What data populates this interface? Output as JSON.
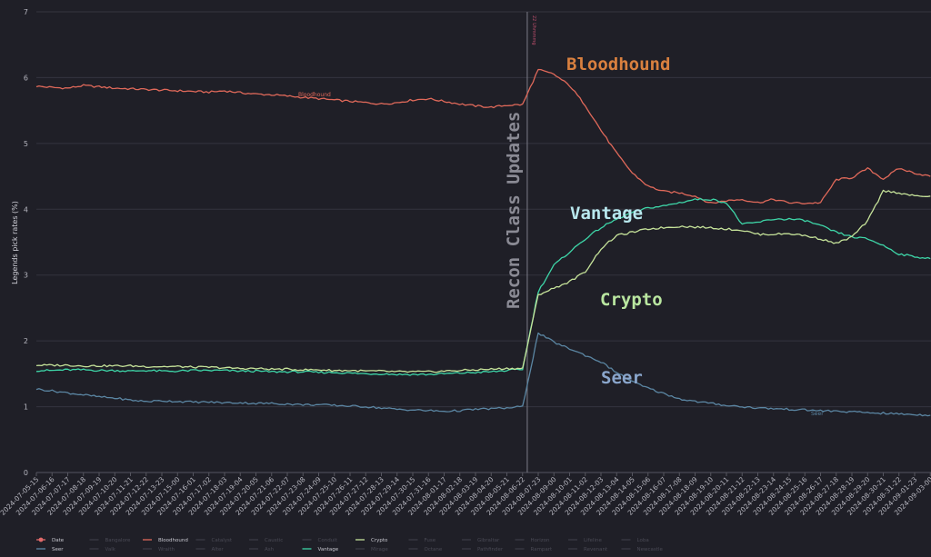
{
  "chart_data": {
    "type": "line",
    "ylabel": "Legends pick rates (%)",
    "ylim": [
      0,
      7
    ],
    "yticks": [
      "0",
      "1",
      "2",
      "3",
      "4",
      "5",
      "6",
      "7"
    ],
    "x_dates": [
      "2024-07-05-15",
      "2024-07-06-16",
      "2024-07-07-17",
      "2024-07-08-18",
      "2024-07-09-19",
      "2024-07-10-20",
      "2024-07-11-21",
      "2024-07-12-22",
      "2024-07-13-23",
      "2024-07-15-00",
      "2024-07-16-01",
      "2024-07-17-02",
      "2024-07-18-03",
      "2024-07-19-04",
      "2024-07-20-05",
      "2024-07-21-06",
      "2024-07-22-07",
      "2024-07-23-08",
      "2024-07-24-09",
      "2024-07-25-10",
      "2024-07-26-11",
      "2024-07-27-12",
      "2024-07-28-13",
      "2024-07-29-14",
      "2024-07-30-15",
      "2024-07-31-16",
      "2024-08-01-17",
      "2024-08-02-18",
      "2024-08-03-19",
      "2024-08-04-20",
      "2024-08-05-21",
      "2024-08-06-22",
      "2024-08-07-23",
      "2024-08-09-00",
      "2024-08-10-01",
      "2024-08-11-02",
      "2024-08-12-03",
      "2024-08-13-04",
      "2024-08-14-05",
      "2024-08-15-06",
      "2024-08-16-07",
      "2024-08-17-08",
      "2024-08-18-09",
      "2024-08-19-10",
      "2024-08-20-11",
      "2024-08-21-12",
      "2024-08-22-13",
      "2024-08-23-14",
      "2024-08-24-15",
      "2024-08-25-16",
      "2024-08-26-17",
      "2024-08-27-18",
      "2024-08-28-19",
      "2024-08-29-20",
      "2024-08-30-21",
      "2024-08-31-22",
      "2024-09-01-23",
      "2024-09-03-00"
    ],
    "event_index": 31.3,
    "event_marker_text": "22 Uhmmmg",
    "event_label": "Recon Class Updates",
    "series": [
      {
        "name": "Bloodhound",
        "color": "#e0695a",
        "label_color": "#d9803f",
        "values": [
          5.87,
          5.85,
          5.84,
          5.88,
          5.86,
          5.84,
          5.83,
          5.82,
          5.81,
          5.8,
          5.79,
          5.78,
          5.8,
          5.77,
          5.75,
          5.74,
          5.72,
          5.7,
          5.68,
          5.66,
          5.64,
          5.62,
          5.6,
          5.62,
          5.66,
          5.68,
          5.64,
          5.6,
          5.57,
          5.55,
          5.58,
          5.59,
          6.12,
          6.05,
          5.88,
          5.58,
          5.2,
          4.85,
          4.55,
          4.35,
          4.27,
          4.25,
          4.2,
          4.09,
          4.13,
          4.15,
          4.1,
          4.15,
          4.1,
          4.09,
          4.1,
          4.45,
          4.48,
          4.62,
          4.46,
          4.62,
          4.55,
          4.5
        ]
      },
      {
        "name": "Vantage",
        "color": "#3ed6a8",
        "label_color": "#b8e8ee",
        "values": [
          1.55,
          1.55,
          1.56,
          1.56,
          1.55,
          1.55,
          1.54,
          1.55,
          1.54,
          1.54,
          1.55,
          1.55,
          1.55,
          1.54,
          1.54,
          1.53,
          1.53,
          1.53,
          1.52,
          1.52,
          1.51,
          1.5,
          1.5,
          1.49,
          1.49,
          1.49,
          1.5,
          1.51,
          1.52,
          1.53,
          1.55,
          1.57,
          2.75,
          3.15,
          3.35,
          3.55,
          3.72,
          3.85,
          3.95,
          4.02,
          4.05,
          4.1,
          4.15,
          4.15,
          4.1,
          3.77,
          3.8,
          3.85,
          3.85,
          3.83,
          3.75,
          3.65,
          3.58,
          3.55,
          3.45,
          3.32,
          3.28,
          3.25
        ]
      },
      {
        "name": "Crypto",
        "color": "#c6e39a",
        "label_color": "#b9e6a0",
        "values": [
          1.63,
          1.63,
          1.63,
          1.62,
          1.62,
          1.62,
          1.62,
          1.61,
          1.61,
          1.61,
          1.6,
          1.6,
          1.59,
          1.58,
          1.58,
          1.57,
          1.57,
          1.56,
          1.56,
          1.55,
          1.55,
          1.54,
          1.54,
          1.53,
          1.53,
          1.53,
          1.54,
          1.55,
          1.56,
          1.57,
          1.58,
          1.58,
          2.7,
          2.8,
          2.9,
          3.05,
          3.4,
          3.6,
          3.65,
          3.7,
          3.72,
          3.74,
          3.73,
          3.72,
          3.7,
          3.68,
          3.62,
          3.62,
          3.63,
          3.6,
          3.55,
          3.48,
          3.58,
          3.82,
          4.28,
          4.25,
          4.2,
          4.2
        ]
      },
      {
        "name": "Seer",
        "color": "#5b86a3",
        "label_color": "#8aa6cc",
        "values": [
          1.27,
          1.24,
          1.21,
          1.18,
          1.15,
          1.13,
          1.1,
          1.08,
          1.09,
          1.08,
          1.07,
          1.07,
          1.06,
          1.06,
          1.05,
          1.05,
          1.04,
          1.03,
          1.03,
          1.02,
          1.01,
          1.0,
          0.98,
          0.96,
          0.95,
          0.94,
          0.93,
          0.94,
          0.96,
          0.97,
          0.98,
          1.0,
          2.12,
          1.98,
          1.88,
          1.78,
          1.68,
          1.52,
          1.38,
          1.28,
          1.2,
          1.12,
          1.08,
          1.05,
          1.02,
          1.0,
          0.98,
          0.97,
          0.96,
          0.95,
          0.94,
          0.93,
          0.92,
          0.91,
          0.9,
          0.89,
          0.88,
          0.87
        ]
      }
    ],
    "inline_labels": [
      {
        "series": "Bloodhound",
        "text": "Bloodhound"
      },
      {
        "series": "Seer",
        "text": "Seer"
      }
    ],
    "big_labels": [
      {
        "series": "Bloodhound",
        "text": "Bloodhound"
      },
      {
        "series": "Vantage",
        "text": "Vantage"
      },
      {
        "series": "Crypto",
        "text": "Crypto"
      },
      {
        "series": "Seer",
        "text": "Seer"
      }
    ],
    "legend_row1": [
      "Date",
      "Bangalore",
      "Bloodhound",
      "Catalyst",
      "Caustic",
      "Conduit",
      "Crypto",
      "Fuse",
      "Gibraltar",
      "Horizon",
      "Lifeline",
      "Loba"
    ],
    "legend_row2": [
      "Seer",
      "Valk",
      "Wraith",
      "Alter",
      "Ash",
      "Vantage",
      "Mirage",
      "Octane",
      "Pathfinder",
      "Rampart",
      "Revenant",
      "Newcastle"
    ],
    "legend_colors": {
      "Date": "#e06a6a",
      "Bloodhound": "#e0695a",
      "Crypto": "#c6e39a",
      "Seer": "#5b86a3",
      "Vantage": "#3ed6a8"
    },
    "legend_active": [
      "Date",
      "Bloodhound",
      "Crypto",
      "Seer",
      "Vantage"
    ]
  }
}
